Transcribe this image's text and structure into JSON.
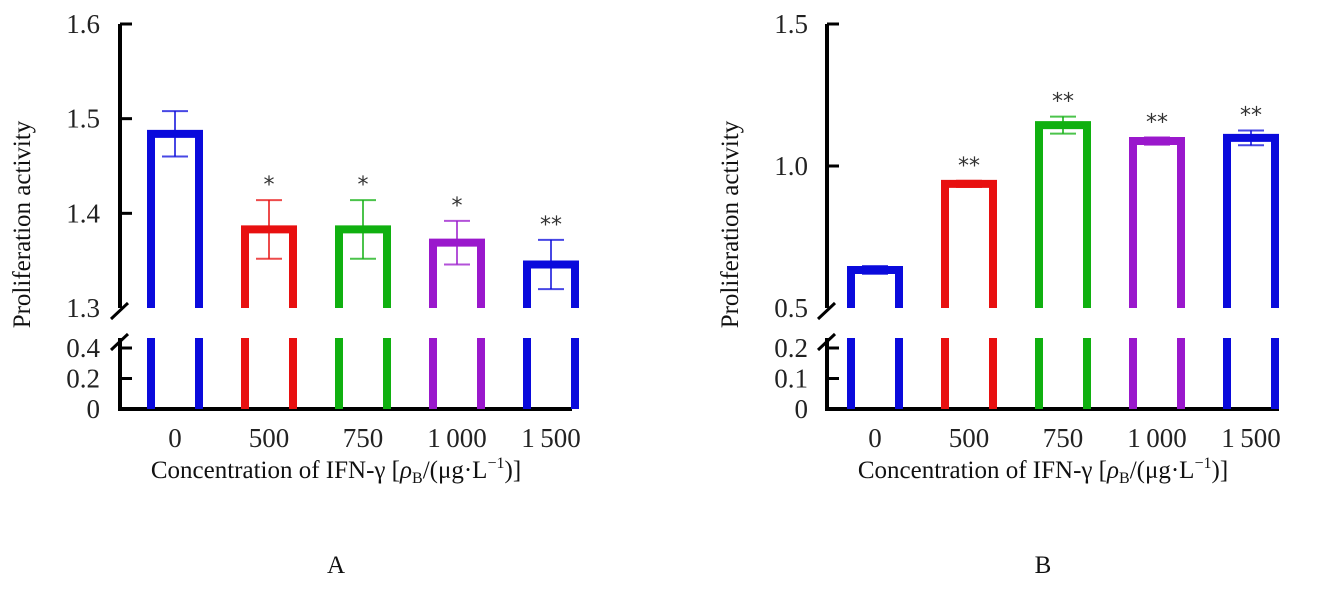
{
  "chart_data": [
    {
      "type": "bar",
      "panel_label": "A",
      "title": "",
      "xlabel": "Concentration of IFN-γ [ρB/(μg·L⁻¹)]",
      "xlabel_parts": {
        "main": "Concentration of IFN-γ [",
        "rho": "ρ",
        "sub": "B",
        "mid": "/(μg·L",
        "sup": "−1",
        "end": ")]"
      },
      "ylabel": "Proliferation activity",
      "categories": [
        "0",
        "500",
        "750",
        "1 000",
        "1 500"
      ],
      "values": [
        1.484,
        1.383,
        1.383,
        1.369,
        1.346
      ],
      "error": [
        0.024,
        0.031,
        0.031,
        0.023,
        0.026
      ],
      "significance": [
        "",
        "*",
        "*",
        "*",
        "**"
      ],
      "colors": [
        "#0a0adc",
        "#e81010",
        "#10b010",
        "#9a18cc",
        "#0a0adc"
      ],
      "y_break": {
        "lower": [
          0,
          0.5
        ],
        "upper": [
          1.3,
          1.6
        ]
      },
      "yticks_upper": [
        "1.3",
        "1.4",
        "1.5",
        "1.6"
      ],
      "yticks_lower": [
        "0",
        "0.2",
        "0.4"
      ],
      "grid": false
    },
    {
      "type": "bar",
      "panel_label": "B",
      "title": "",
      "xlabel": "Concentration of IFN-γ [ρB/(μg·L⁻¹)]",
      "xlabel_parts": {
        "main": "Concentration of IFN-γ [",
        "rho": "ρ",
        "sub": "B",
        "mid": "/(μg·L",
        "sup": "−1",
        "end": ")]"
      },
      "ylabel": "Proliferation activity",
      "categories": [
        "0",
        "500",
        "750",
        "1 000",
        "1 500"
      ],
      "values": [
        0.634,
        0.937,
        1.144,
        1.088,
        1.099
      ],
      "error": [
        0.014,
        0.011,
        0.03,
        0.013,
        0.026
      ],
      "significance": [
        "",
        "**",
        "**",
        "**",
        "**"
      ],
      "colors": [
        "#0a0adc",
        "#e81010",
        "#10b010",
        "#9a18cc",
        "#0a0adc"
      ],
      "y_break": {
        "lower": [
          0,
          0.2
        ],
        "upper": [
          0.5,
          1.5
        ]
      },
      "yticks_upper": [
        "0.5",
        "1.0",
        "1.5"
      ],
      "yticks_lower": [
        "0",
        "0.1",
        "0.2"
      ],
      "grid": false
    }
  ]
}
